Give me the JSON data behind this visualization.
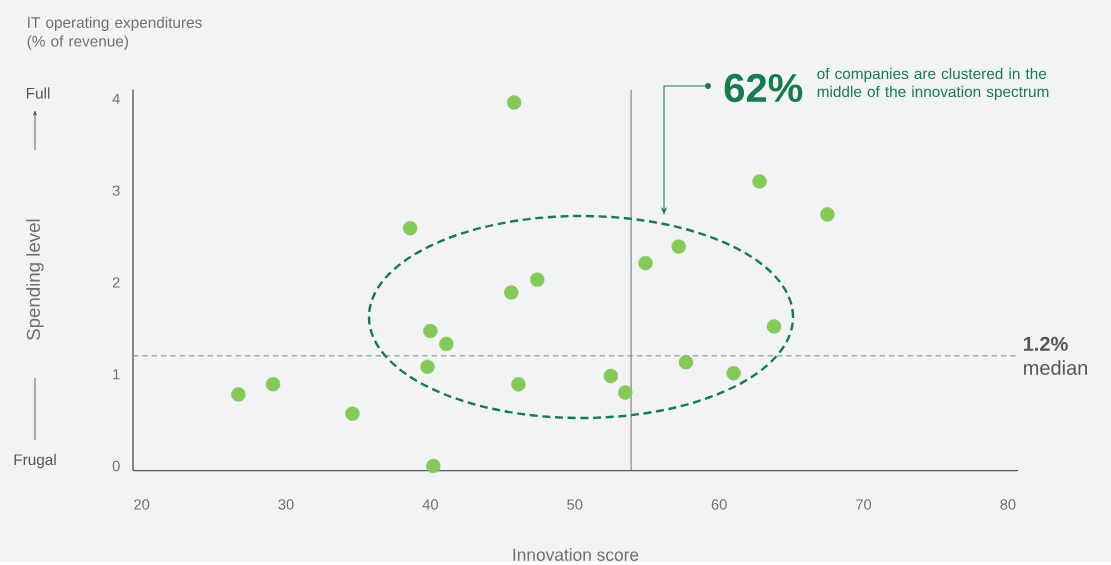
{
  "chart_data": {
    "type": "scatter",
    "xlabel": "Innovation score",
    "ylabel": "Spending level",
    "x": [
      45.8,
      38.6,
      47.4,
      45.6,
      40.0,
      41.1,
      39.8,
      26.7,
      29.1,
      34.6,
      40.2,
      46.1,
      52.5,
      53.5,
      54.9,
      57.2,
      57.7,
      61.0,
      62.8,
      63.8,
      67.5
    ],
    "series": [
      {
        "color": "#85c95a",
        "values": [
          3.96,
          2.59,
          2.03,
          1.89,
          1.47,
          1.33,
          1.08,
          0.78,
          0.89,
          0.57,
          0.0,
          0.89,
          0.98,
          0.8,
          2.21,
          2.39,
          1.13,
          1.01,
          3.1,
          1.52,
          2.74
        ]
      }
    ],
    "marker": "circle",
    "xlim": [
      19.4,
      80.7
    ],
    "ylim": [
      -0.05,
      4.1
    ],
    "xticks": [
      20,
      30,
      40,
      50,
      60,
      70,
      80
    ],
    "yticks": [
      0,
      1,
      2,
      3,
      4
    ],
    "grid": false,
    "ref_lines": [
      {
        "axis": "y",
        "value": 1.2,
        "label": "**1.2%** median",
        "color": "#777777",
        "line_style": "dashed"
      },
      {
        "axis": "x",
        "value": 53.9,
        "color": "#666666",
        "line_style": "solid"
      }
    ],
    "annotations": [
      "IT operating expenditures (% of revenue)",
      "Full",
      "Frugal",
      "62%",
      "of companies are clustered in the middle of the innovation spectrum"
    ]
  }
}
